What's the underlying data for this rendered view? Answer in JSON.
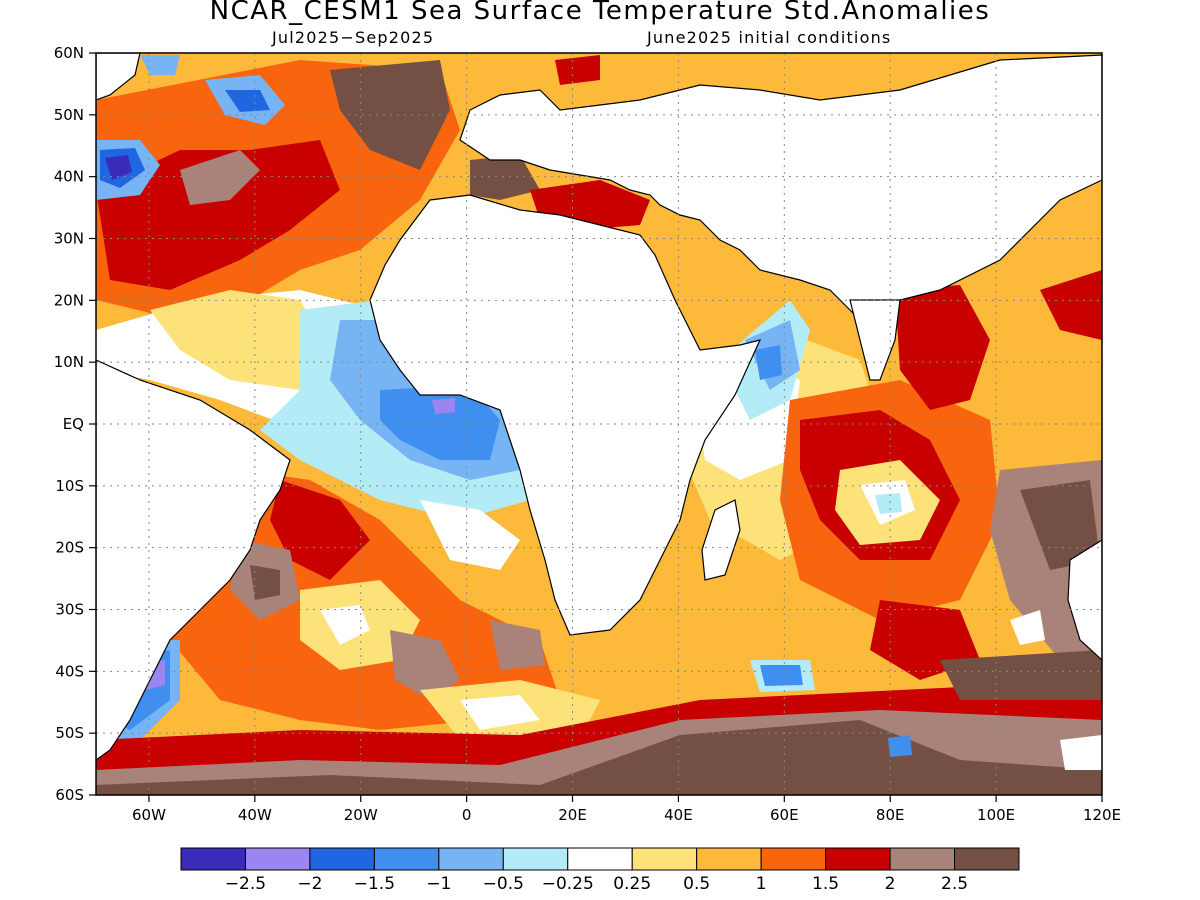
{
  "header": {
    "title": "NCAR_CESM1 Sea Surface Temperature Std.Anomalies",
    "period": "Jul2025−Sep2025",
    "init": "June2025 initial conditions"
  },
  "axes": {
    "lat_labels": [
      "60N",
      "50N",
      "40N",
      "30N",
      "20N",
      "10N",
      "EQ",
      "10S",
      "20S",
      "30S",
      "40S",
      "50S",
      "60S"
    ],
    "lon_labels": [
      "60W",
      "40W",
      "20W",
      "0",
      "20E",
      "40E",
      "60E",
      "80E",
      "100E",
      "120E"
    ],
    "lat_range": [
      -60,
      60
    ],
    "lon_range": [
      -70,
      120
    ],
    "grid": "dotted"
  },
  "legend": {
    "labels": [
      "−2.5",
      "−2",
      "−1.5",
      "−1",
      "−0.5",
      "−0.25",
      "0.25",
      "0.5",
      "1",
      "1.5",
      "2",
      "2.5"
    ],
    "colors": [
      "#3a2bb8",
      "#9b86ef",
      "#1f66e0",
      "#3f8ff0",
      "#76b4f4",
      "#b3ecf7",
      "#ffffff",
      "#fde27a",
      "#fdb93a",
      "#f9640f",
      "#c80000",
      "#a9827a",
      "#744f44"
    ]
  },
  "colors": {
    "land": "#ffffff",
    "coast": "#000000"
  }
}
